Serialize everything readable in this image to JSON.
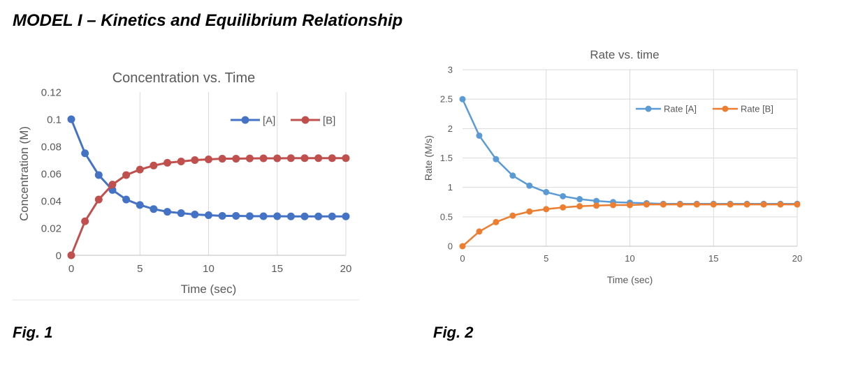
{
  "page": {
    "heading": "MODEL I – Kinetics and Equilibrium Relationship",
    "fig1_label": "Fig. 1",
    "fig2_label": "Fig. 2"
  },
  "colors": {
    "A1": "#4472C4",
    "B1": "#C0504D",
    "A2": "#5B9BD5",
    "B2": "#ED7D31",
    "grid": "#D9D9D9",
    "axis": "#BFBFBF",
    "text": "#595959"
  },
  "chart_data": [
    {
      "type": "line",
      "title": "Concentration vs. Time",
      "xlabel": "Time (sec)",
      "ylabel": "Concentration (M)",
      "xlim": [
        0,
        20
      ],
      "ylim": [
        0,
        0.12
      ],
      "xticks": [
        0,
        5,
        10,
        15,
        20
      ],
      "yticks": [
        0,
        0.02,
        0.04,
        0.06,
        0.08,
        0.1,
        0.12
      ],
      "ytick_labels": [
        "0",
        "0.02",
        "0.04",
        "0.06",
        "0.08",
        "0.1",
        "0.12"
      ],
      "grid": "vertical",
      "legend": "top-right",
      "x": [
        0,
        1,
        2,
        3,
        4,
        5,
        6,
        7,
        8,
        9,
        10,
        11,
        12,
        13,
        14,
        15,
        16,
        17,
        18,
        19,
        20
      ],
      "series": [
        {
          "name": "[A]",
          "values": [
            0.1,
            0.075,
            0.059,
            0.048,
            0.041,
            0.037,
            0.034,
            0.032,
            0.031,
            0.03,
            0.0295,
            0.029,
            0.029,
            0.0288,
            0.0287,
            0.0287,
            0.0286,
            0.0286,
            0.0286,
            0.0286,
            0.0286
          ]
        },
        {
          "name": "[B]",
          "values": [
            0,
            0.025,
            0.041,
            0.052,
            0.059,
            0.063,
            0.066,
            0.068,
            0.069,
            0.07,
            0.0705,
            0.071,
            0.071,
            0.0712,
            0.0713,
            0.0713,
            0.0714,
            0.0714,
            0.0714,
            0.0714,
            0.0714
          ]
        }
      ]
    },
    {
      "type": "line",
      "title": "Rate vs. time",
      "xlabel": "Time (sec)",
      "ylabel": "Rate (M/s)",
      "xlim": [
        0,
        20
      ],
      "ylim": [
        0,
        3
      ],
      "xticks": [
        0,
        5,
        10,
        15,
        20
      ],
      "yticks": [
        0,
        0.5,
        1,
        1.5,
        2,
        2.5,
        3
      ],
      "ytick_labels": [
        "0",
        "0.5",
        "1",
        "1.5",
        "2",
        "2.5",
        "3"
      ],
      "grid": "both",
      "legend": "top-right",
      "x": [
        0,
        1,
        2,
        3,
        4,
        5,
        6,
        7,
        8,
        9,
        10,
        11,
        12,
        13,
        14,
        15,
        16,
        17,
        18,
        19,
        20
      ],
      "series": [
        {
          "name": "Rate [A]",
          "values": [
            2.5,
            1.88,
            1.48,
            1.2,
            1.03,
            0.92,
            0.85,
            0.8,
            0.77,
            0.75,
            0.74,
            0.73,
            0.72,
            0.72,
            0.72,
            0.72,
            0.72,
            0.72,
            0.72,
            0.72,
            0.72
          ]
        },
        {
          "name": "Rate [B]",
          "values": [
            0,
            0.25,
            0.41,
            0.52,
            0.59,
            0.63,
            0.66,
            0.68,
            0.69,
            0.7,
            0.7,
            0.71,
            0.71,
            0.71,
            0.71,
            0.71,
            0.71,
            0.71,
            0.71,
            0.71,
            0.71
          ]
        }
      ]
    }
  ]
}
